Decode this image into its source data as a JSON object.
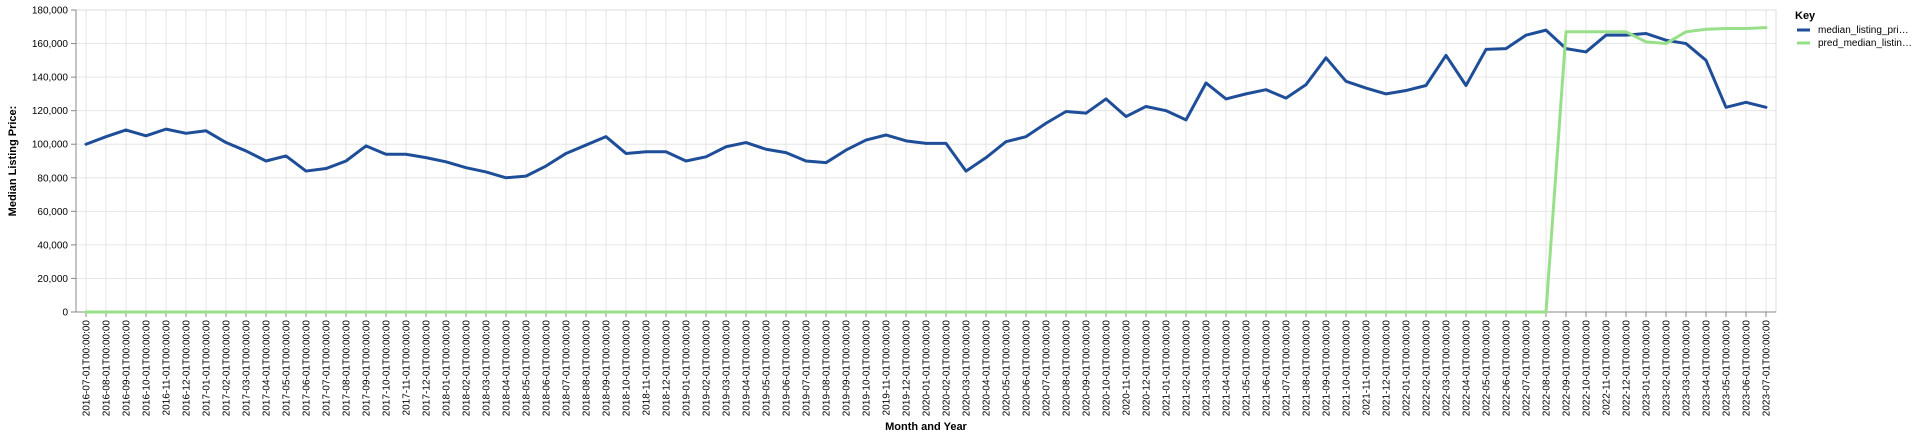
{
  "chart_data": {
    "type": "line",
    "xlabel": "Month and Year",
    "ylabel": "Median Listing Price:",
    "ylim": [
      0,
      180000
    ],
    "yticks": [
      "0",
      "20,000",
      "40,000",
      "60,000",
      "80,000",
      "100,000",
      "120,000",
      "140,000",
      "160,000",
      "180,000"
    ],
    "ytick_values": [
      0,
      20000,
      40000,
      60000,
      80000,
      100000,
      120000,
      140000,
      160000,
      180000
    ],
    "grid": true,
    "legend": {
      "title": "Key",
      "position": "top-right",
      "entries": [
        "median_listing_pri…",
        "pred_median_listin…"
      ]
    },
    "x": [
      "2016-07-01T00:00:00",
      "2016-08-01T00:00:00",
      "2016-09-01T00:00:00",
      "2016-10-01T00:00:00",
      "2016-11-01T00:00:00",
      "2016-12-01T00:00:00",
      "2017-01-01T00:00:00",
      "2017-02-01T00:00:00",
      "2017-03-01T00:00:00",
      "2017-04-01T00:00:00",
      "2017-05-01T00:00:00",
      "2017-06-01T00:00:00",
      "2017-07-01T00:00:00",
      "2017-08-01T00:00:00",
      "2017-09-01T00:00:00",
      "2017-10-01T00:00:00",
      "2017-11-01T00:00:00",
      "2017-12-01T00:00:00",
      "2018-01-01T00:00:00",
      "2018-02-01T00:00:00",
      "2018-03-01T00:00:00",
      "2018-04-01T00:00:00",
      "2018-05-01T00:00:00",
      "2018-06-01T00:00:00",
      "2018-07-01T00:00:00",
      "2018-08-01T00:00:00",
      "2018-09-01T00:00:00",
      "2018-10-01T00:00:00",
      "2018-11-01T00:00:00",
      "2018-12-01T00:00:00",
      "2019-01-01T00:00:00",
      "2019-02-01T00:00:00",
      "2019-03-01T00:00:00",
      "2019-04-01T00:00:00",
      "2019-05-01T00:00:00",
      "2019-06-01T00:00:00",
      "2019-07-01T00:00:00",
      "2019-08-01T00:00:00",
      "2019-09-01T00:00:00",
      "2019-10-01T00:00:00",
      "2019-11-01T00:00:00",
      "2019-12-01T00:00:00",
      "2020-01-01T00:00:00",
      "2020-02-01T00:00:00",
      "2020-03-01T00:00:00",
      "2020-04-01T00:00:00",
      "2020-05-01T00:00:00",
      "2020-06-01T00:00:00",
      "2020-07-01T00:00:00",
      "2020-08-01T00:00:00",
      "2020-09-01T00:00:00",
      "2020-10-01T00:00:00",
      "2020-11-01T00:00:00",
      "2020-12-01T00:00:00",
      "2021-01-01T00:00:00",
      "2021-02-01T00:00:00",
      "2021-03-01T00:00:00",
      "2021-04-01T00:00:00",
      "2021-05-01T00:00:00",
      "2021-06-01T00:00:00",
      "2021-07-01T00:00:00",
      "2021-08-01T00:00:00",
      "2021-09-01T00:00:00",
      "2021-10-01T00:00:00",
      "2021-11-01T00:00:00",
      "2021-12-01T00:00:00",
      "2022-01-01T00:00:00",
      "2022-02-01T00:00:00",
      "2022-03-01T00:00:00",
      "2022-04-01T00:00:00",
      "2022-05-01T00:00:00",
      "2022-06-01T00:00:00",
      "2022-07-01T00:00:00",
      "2022-08-01T00:00:00",
      "2022-09-01T00:00:00",
      "2022-10-01T00:00:00",
      "2022-11-01T00:00:00",
      "2022-12-01T00:00:00",
      "2023-01-01T00:00:00",
      "2023-02-01T00:00:00",
      "2023-03-01T00:00:00",
      "2023-04-01T00:00:00",
      "2023-05-01T00:00:00",
      "2023-06-01T00:00:00",
      "2023-07-01T00:00:00"
    ],
    "series": [
      {
        "name": "median_listing_pri…",
        "color": "#1f4e99",
        "values": [
          100000,
          104500,
          108500,
          105000,
          109000,
          106500,
          108000,
          101000,
          96000,
          90000,
          93000,
          84000,
          85500,
          90000,
          99000,
          94000,
          94000,
          92000,
          89500,
          86000,
          83500,
          80000,
          81000,
          87000,
          94500,
          99500,
          104500,
          94500,
          95500,
          95500,
          90000,
          92500,
          98500,
          101000,
          97000,
          95000,
          90000,
          89000,
          96500,
          102500,
          105500,
          102000,
          100500,
          100500,
          84000,
          92000,
          101500,
          104500,
          112500,
          119500,
          118500,
          127000,
          116500,
          122500,
          120000,
          114500,
          136500,
          127000,
          130000,
          132500,
          127500,
          135500,
          151500,
          137500,
          133500,
          130000,
          132000,
          135000,
          153000,
          135000,
          156500,
          157000,
          165000,
          168000,
          157000,
          155000,
          165000,
          165000,
          166000,
          162000,
          160000,
          150000,
          122000,
          125000,
          122000
        ]
      },
      {
        "name": "pred_median_listin…",
        "color": "#98df8a",
        "values": [
          0,
          0,
          0,
          0,
          0,
          0,
          0,
          0,
          0,
          0,
          0,
          0,
          0,
          0,
          0,
          0,
          0,
          0,
          0,
          0,
          0,
          0,
          0,
          0,
          0,
          0,
          0,
          0,
          0,
          0,
          0,
          0,
          0,
          0,
          0,
          0,
          0,
          0,
          0,
          0,
          0,
          0,
          0,
          0,
          0,
          0,
          0,
          0,
          0,
          0,
          0,
          0,
          0,
          0,
          0,
          0,
          0,
          0,
          0,
          0,
          0,
          0,
          0,
          0,
          0,
          0,
          0,
          0,
          0,
          0,
          0,
          0,
          0,
          0,
          167000,
          167000,
          167000,
          167000,
          161000,
          160000,
          167000,
          168500,
          169000,
          169000,
          169500
        ]
      }
    ]
  }
}
